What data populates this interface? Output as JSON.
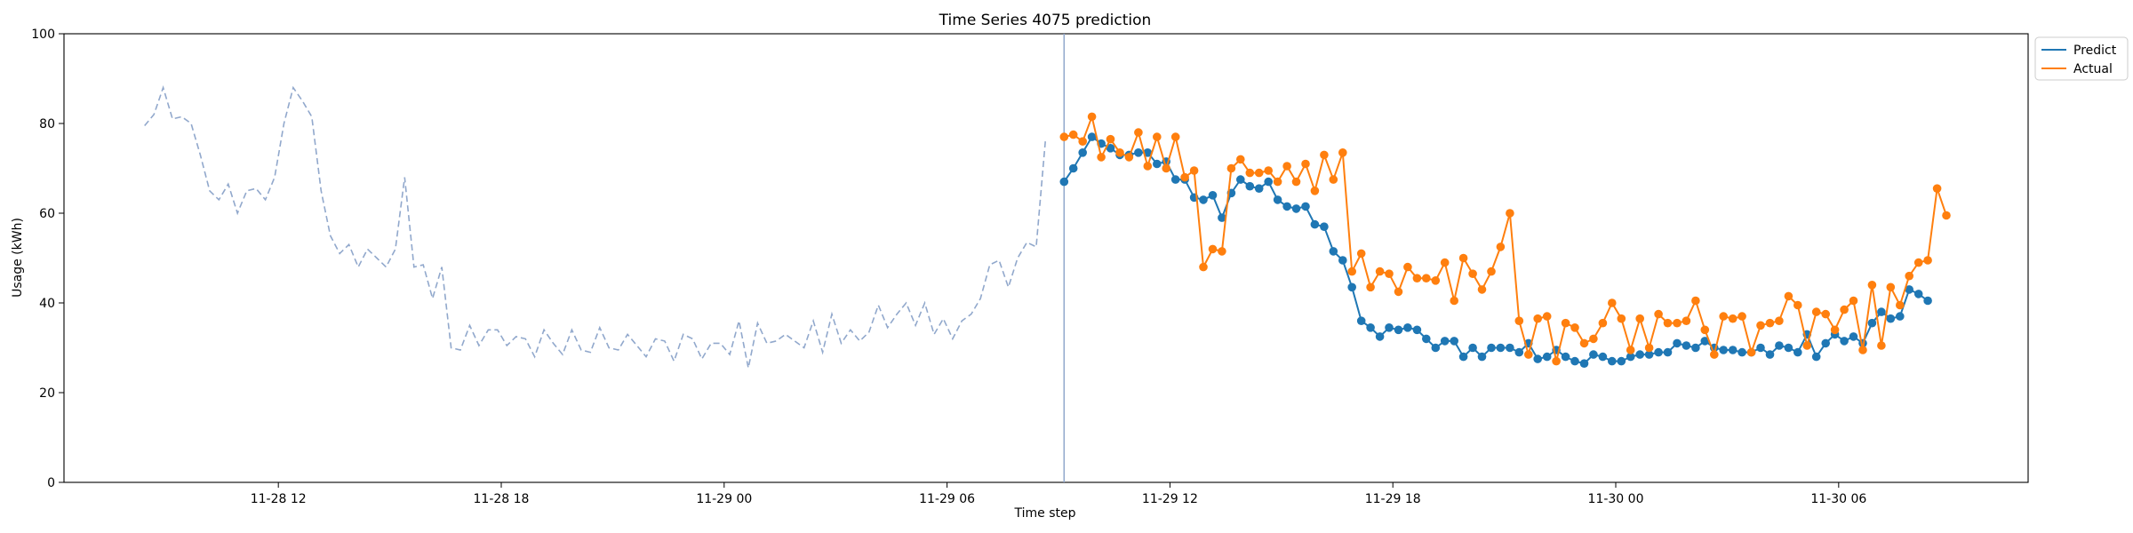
{
  "chart_data": {
    "type": "line",
    "title": "Time Series 4075 prediction",
    "xlabel": "Time step",
    "ylabel": "Usage (kWh)",
    "ylim": [
      0,
      100
    ],
    "y_ticks": [
      0,
      20,
      40,
      60,
      80,
      100
    ],
    "x_ticks": [
      {
        "label": "11-28 12",
        "hours": 12
      },
      {
        "label": "11-28 18",
        "hours": 18
      },
      {
        "label": "11-29 00",
        "hours": 24
      },
      {
        "label": "11-29 06",
        "hours": 30
      },
      {
        "label": "11-29 12",
        "hours": 36
      },
      {
        "label": "11-29 18",
        "hours": 42
      },
      {
        "label": "11-30 00",
        "hours": 48
      },
      {
        "label": "11-30 06",
        "hours": 54
      }
    ],
    "xlim_hours": [
      6.23,
      59.1
    ],
    "x_start_hours": 8.4,
    "x_step_hours": 0.25,
    "forecast_start_hours": 33.15,
    "grid": false,
    "legend_position": "outside-top-right",
    "series": [
      {
        "name": "",
        "style": "dashed",
        "color": "#91a8cc",
        "start_index": 0,
        "values": [
          79.5,
          82.0,
          88.0,
          81.0,
          81.5,
          80.0,
          73.0,
          65.0,
          63.0,
          66.5,
          60.0,
          65.0,
          65.5,
          63.0,
          68.0,
          80.0,
          88.0,
          85.0,
          81.5,
          65.0,
          55.0,
          51.0,
          53.0,
          48.0,
          52.0,
          50.0,
          48.0,
          52.0,
          68.0,
          48.0,
          48.5,
          41.0,
          48.0,
          30.0,
          29.5,
          35.0,
          30.5,
          34.0,
          34.0,
          30.5,
          32.5,
          32.0,
          28.0,
          34.0,
          31.0,
          28.5,
          34.0,
          29.5,
          29.0,
          34.5,
          30.0,
          29.5,
          33.0,
          30.5,
          28.0,
          32.0,
          31.5,
          27.0,
          33.0,
          32.0,
          27.5,
          31.0,
          31.0,
          28.5,
          36.0,
          25.5,
          35.5,
          31.0,
          31.5,
          33.0,
          31.5,
          30.0,
          36.0,
          29.0,
          37.5,
          31.0,
          34.0,
          31.5,
          33.5,
          39.5,
          34.5,
          37.5,
          40.0,
          35.0,
          40.0,
          33.0,
          36.5,
          32.0,
          36.0,
          37.5,
          41.0,
          48.5,
          49.5,
          43.5,
          50.0,
          53.5,
          52.5,
          76.5
        ]
      },
      {
        "name": "Predict",
        "style": "solid-markers",
        "color": "#1f77b4",
        "start_index": 99,
        "values": [
          67.0,
          70.0,
          73.5,
          77.0,
          75.5,
          74.5,
          73.0,
          73.0,
          73.5,
          73.5,
          71.0,
          71.5,
          67.5,
          67.5,
          63.5,
          63.0,
          64.0,
          59.0,
          64.5,
          67.5,
          66.0,
          65.5,
          67.0,
          63.0,
          61.5,
          61.0,
          61.5,
          57.5,
          57.0,
          51.5,
          49.5,
          43.5,
          36.0,
          34.5,
          32.5,
          34.5,
          34.0,
          34.5,
          34.0,
          32.0,
          30.0,
          31.5,
          31.5,
          28.0,
          30.0,
          28.0,
          30.0,
          30.0,
          30.0,
          29.0,
          31.0,
          27.5,
          28.0,
          29.5,
          28.0,
          27.0,
          26.5,
          28.5,
          28.0,
          27.0,
          27.0,
          28.0,
          28.5,
          28.5,
          29.0,
          29.0,
          31.0,
          30.5,
          30.0,
          31.5,
          30.0,
          29.5,
          29.5,
          29.0,
          29.0,
          30.0,
          28.5,
          30.5,
          30.0,
          29.0,
          33.0,
          28.0,
          31.0,
          33.0,
          31.5,
          32.5,
          31.0,
          35.5,
          38.0,
          36.5,
          37.0,
          43.0,
          42.0,
          40.5
        ]
      },
      {
        "name": "Actual",
        "style": "solid-markers",
        "color": "#ff7f0e",
        "start_index": 99,
        "values": [
          77.0,
          77.5,
          76.0,
          81.5,
          72.5,
          76.5,
          73.5,
          72.5,
          78.0,
          70.5,
          77.0,
          70.0,
          77.0,
          68.0,
          69.5,
          48.0,
          52.0,
          51.5,
          70.0,
          72.0,
          69.0,
          69.0,
          69.5,
          67.0,
          70.5,
          67.0,
          71.0,
          65.0,
          73.0,
          67.5,
          73.5,
          47.0,
          51.0,
          43.5,
          47.0,
          46.5,
          42.5,
          48.0,
          45.5,
          45.5,
          45.0,
          49.0,
          40.5,
          50.0,
          46.5,
          43.0,
          47.0,
          52.5,
          60.0,
          36.0,
          28.5,
          36.5,
          37.0,
          27.0,
          35.5,
          34.5,
          31.0,
          32.0,
          35.5,
          40.0,
          36.5,
          29.5,
          36.5,
          30.0,
          37.5,
          35.5,
          35.5,
          36.0,
          40.5,
          34.0,
          28.5,
          37.0,
          36.5,
          37.0,
          29.0,
          35.0,
          35.5,
          36.0,
          41.5,
          39.5,
          30.5,
          38.0,
          37.5,
          34.0,
          38.5,
          40.5,
          29.5,
          44.0,
          30.5,
          43.5,
          39.5,
          46.0,
          49.0,
          49.5,
          65.5,
          59.5
        ]
      }
    ]
  }
}
